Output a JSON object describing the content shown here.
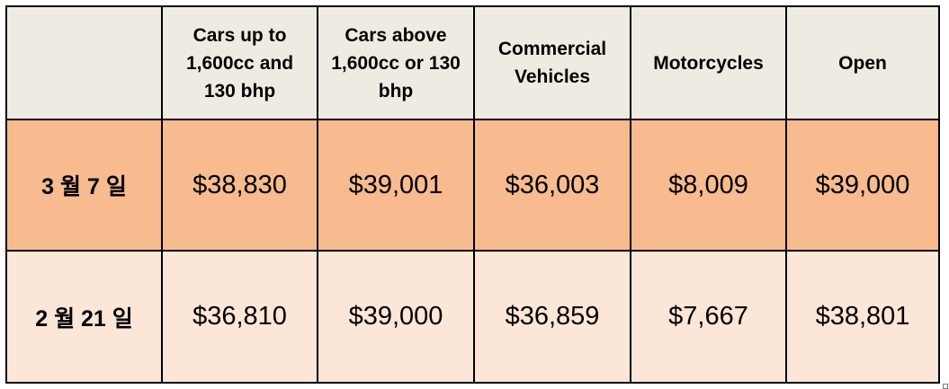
{
  "table": {
    "headers": [
      "",
      "Cars up to 1,600cc and 130 bhp",
      "Cars above 1,600cc or 130 bhp",
      "Commercial Vehicles",
      "Motorcycles",
      "Open"
    ],
    "rows": [
      {
        "label": "3 월 7 일",
        "values": [
          "$38,830",
          "$39,001",
          "$36,003",
          "$8,009",
          "$39,000"
        ]
      },
      {
        "label": "2 월 21 일",
        "values": [
          "$36,810",
          "$39,000",
          "$36,859",
          "$7,667",
          "$38,801"
        ]
      }
    ]
  },
  "colors": {
    "header_background": "#eeece2",
    "row1_background": "#f7bb8f",
    "row2_background": "#fce6d8",
    "border": "#000000"
  }
}
